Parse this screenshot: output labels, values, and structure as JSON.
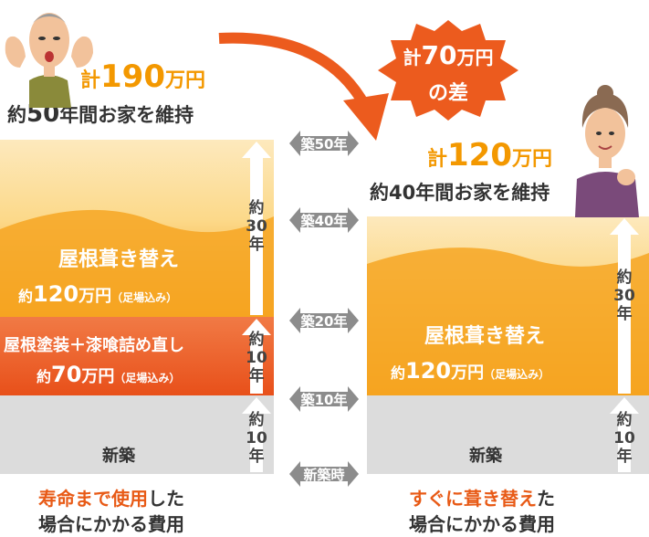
{
  "left": {
    "total_prefix": "計",
    "total_num": "190",
    "total_unit": "万円",
    "duration_prefix": "約",
    "duration_num": "50",
    "duration_suffix": "年間お家を維持",
    "roof_title": "屋根葺き替え",
    "roof_cost_prefix": "約",
    "roof_cost_num": "120",
    "roof_cost_unit": "万円",
    "roof_cost_note": "（足場込み）",
    "paint_title": "屋根塗装＋漆喰詰め直し",
    "paint_cost_prefix": "約",
    "paint_cost_num": "70",
    "paint_cost_unit": "万円",
    "paint_cost_note": "（足場込み）",
    "new_label": "新築",
    "span_30": [
      "約",
      "30",
      "年"
    ],
    "span_10a": [
      "約",
      "10",
      "年"
    ],
    "span_10b": [
      "約",
      "10",
      "年"
    ],
    "caption_hl1": "寿命まで使用",
    "caption_rest1": "した",
    "caption_line2": "場合にかかる費用"
  },
  "right": {
    "total_prefix": "計",
    "total_num": "120",
    "total_unit": "万円",
    "duration_prefix": "約",
    "duration_num": "40",
    "duration_suffix": "年間お家を維持",
    "roof_title": "屋根葺き替え",
    "roof_cost_prefix": "約",
    "roof_cost_num": "120",
    "roof_cost_unit": "万円",
    "roof_cost_note": "（足場込み）",
    "new_label": "新築",
    "span_30": [
      "約",
      "30",
      "年"
    ],
    "span_10": [
      "約",
      "10",
      "年"
    ],
    "caption_hl1": "すぐに葺き替え",
    "caption_rest1": "た",
    "caption_line2": "場合にかかる費用"
  },
  "diff_badge": {
    "line1_prefix": "計",
    "line1_num": "70",
    "line1_unit": "万円",
    "line2": "の差"
  },
  "timeline": [
    "築50年",
    "築40年",
    "築20年",
    "築10年",
    "新築時"
  ],
  "colors": {
    "orange": "#f39800",
    "orange_light": "#fde6b3",
    "red": "#ec5b1e",
    "gray": "#dcdcdc",
    "accent_text": "#e85a16",
    "timeline_gray": "#8c8c8c"
  },
  "icons": [
    "elderly-man-illustration",
    "elderly-woman-illustration",
    "curved-arrow-icon",
    "up-arrow-icon",
    "double-arrow-icon"
  ]
}
